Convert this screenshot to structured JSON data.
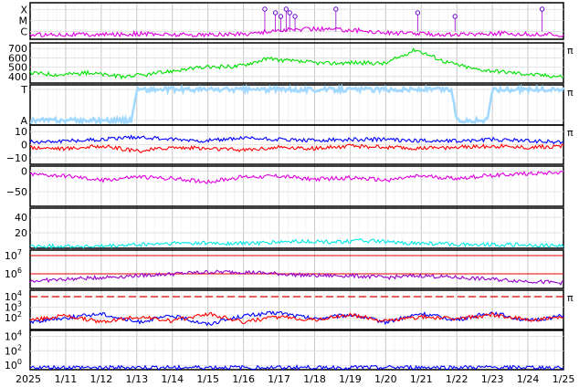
{
  "chart_data": {
    "type": "line",
    "date_range": [
      "2025-01-10",
      "2025-01-25"
    ],
    "date_labels": [
      "2025",
      "1/11",
      "1/12",
      "1/13",
      "1/14",
      "1/15",
      "1/16",
      "1/17",
      "1/18",
      "1/19",
      "1/20",
      "1/21",
      "1/22",
      "1/23",
      "1/24",
      "1/25"
    ],
    "side_marker": "π",
    "colors": {
      "magenta": "#e000e0",
      "green": "#00e000",
      "pink": "#ffaaff",
      "lightblue": "#a0d8ff",
      "blue": "#0000ff",
      "red": "#ff0000",
      "purple": "#9900cc",
      "cyan": "#00e8e8",
      "gray": "#404040"
    },
    "panels": [
      {
        "key": "xray",
        "ticks": [
          {
            "label": "X",
            "value": 3
          },
          {
            "label": "M",
            "value": 2
          },
          {
            "label": "C",
            "value": 1
          }
        ],
        "ylim": [
          0.3,
          3.6
        ],
        "series": [
          {
            "color": "#e000e0",
            "values": [
              0.7,
              0.75,
              0.7,
              0.8,
              0.72,
              0.7,
              0.78,
              1.1,
              1.25,
              1.15,
              0.9,
              0.8,
              0.7,
              0.85,
              0.75,
              0.7
            ]
          }
        ],
        "flare_markers_day": [
          6.6,
          6.9,
          7.05,
          7.2,
          7.3,
          7.45,
          8.6,
          10.9,
          11.95,
          14.4
        ]
      },
      {
        "key": "wind_speed",
        "ticks": [
          {
            "label": "700",
            "value": 700
          },
          {
            "label": "600",
            "value": 600
          },
          {
            "label": "500",
            "value": 500
          },
          {
            "label": "400",
            "value": 400
          }
        ],
        "ylim": [
          330,
          760
        ],
        "series": [
          {
            "color": "#00e000",
            "values": [
              440,
              420,
              440,
              400,
              420,
              470,
              500,
              510,
              590,
              560,
              540,
              550,
              540,
              690,
              560,
              480,
              450,
              420,
              400
            ]
          }
        ],
        "side_marker": true
      },
      {
        "key": "imf_sector",
        "ticks": [
          {
            "label": "T",
            "value": 1
          },
          {
            "label": "A",
            "value": -1
          }
        ],
        "ylim": [
          -1.3,
          1.3
        ],
        "series": [
          {
            "color": "#a0d8ff",
            "values": [
              -1,
              -1,
              -1,
              1,
              1,
              1,
              1,
              1,
              1,
              1,
              1,
              1,
              -1,
              1,
              1,
              1
            ]
          }
        ],
        "side_marker": true
      },
      {
        "key": "imf_bz",
        "ticks": [
          {
            "label": "10",
            "value": 10
          },
          {
            "label": "0",
            "value": 0
          },
          {
            "label": "−10",
            "value": -10
          }
        ],
        "ylim": [
          -15,
          15
        ],
        "series": [
          {
            "color": "#0000ff",
            "values": [
              2,
              3,
              4,
              6,
              4,
              3,
              5,
              4,
              3,
              4,
              4,
              3,
              3,
              4,
              3,
              2
            ]
          },
          {
            "color": "#ff0000",
            "values": [
              -2,
              -3,
              -1,
              -5,
              -2,
              -3,
              -4,
              -2,
              -3,
              -1,
              -2,
              -3,
              -2,
              -1,
              -2,
              -1
            ]
          }
        ],
        "side_marker": true
      },
      {
        "key": "dst",
        "ticks": [
          {
            "label": "0",
            "value": 0
          },
          {
            "label": "−50",
            "value": -50
          }
        ],
        "ylim": [
          -85,
          12
        ],
        "series": [
          {
            "color": "#e000e0",
            "values": [
              -8,
              -12,
              -22,
              -14,
              -18,
              -26,
              -14,
              -12,
              -20,
              -16,
              -22,
              -12,
              -18,
              -10,
              -6,
              -2
            ]
          }
        ]
      },
      {
        "key": "kp_ae",
        "ticks": [
          {
            "label": "40",
            "value": 40
          },
          {
            "label": "20",
            "value": 20
          }
        ],
        "ylim": [
          0,
          52
        ],
        "series": [
          {
            "color": "#00e8e8",
            "values": [
              2,
              3,
              2,
              4,
              6,
              7,
              6,
              7,
              9,
              8,
              10,
              7,
              6,
              5,
              5,
              4,
              3
            ]
          }
        ]
      },
      {
        "key": "electron_flux",
        "ticks": [
          {
            "label": "10",
            "sup": "7",
            "value": 7
          },
          {
            "label": "10",
            "sup": "6",
            "value": 6
          }
        ],
        "ylim": [
          5.2,
          7.3
        ],
        "thresholds": [
          7,
          6
        ],
        "series": [
          {
            "color": "#9900cc",
            "values": [
              5.6,
              5.7,
              5.8,
              5.9,
              6.0,
              6.1,
              6.1,
              6.0,
              5.9,
              5.9,
              5.8,
              5.9,
              5.8,
              5.7,
              5.6,
              5.5
            ]
          }
        ]
      },
      {
        "key": "proton_flux",
        "ticks": [
          {
            "label": "10",
            "sup": "4",
            "value": 4
          },
          {
            "label": "10",
            "sup": "3",
            "value": 3
          },
          {
            "label": "10",
            "sup": "2",
            "value": 2
          }
        ],
        "ylim": [
          0.9,
          4.6
        ],
        "threshold_dashed": 4,
        "series": [
          {
            "color": "#0000ff",
            "values": [
              1.6,
              2.0,
              2.4,
              1.6,
              2.2,
              1.4,
              2.2,
              2.5,
              1.9,
              2.3,
              1.6,
              2.4,
              1.8,
              2.5,
              1.7,
              2.2
            ]
          },
          {
            "color": "#ff0000",
            "values": [
              1.8,
              2.2,
              1.6,
              2.1,
              1.7,
              2.4,
              1.6,
              2.1,
              1.8,
              2.3,
              1.7,
              2.1,
              1.9,
              2.3,
              1.8,
              2.0
            ]
          }
        ],
        "side_marker": true
      },
      {
        "key": "high_energy",
        "ticks": [
          {
            "label": "10",
            "sup": "4",
            "value": 4
          },
          {
            "label": "10",
            "sup": "2",
            "value": 2
          },
          {
            "label": "10",
            "sup": "0",
            "value": 0
          }
        ],
        "ylim": [
          -0.6,
          4.8
        ],
        "series": [
          {
            "color": "#0000ff",
            "values": [
              -0.3,
              -0.3,
              -0.3,
              -0.3,
              -0.3,
              -0.3,
              -0.3,
              -0.3,
              -0.3,
              -0.3,
              -0.3,
              -0.3,
              -0.3,
              -0.3,
              -0.3,
              -0.3
            ]
          }
        ]
      }
    ]
  }
}
